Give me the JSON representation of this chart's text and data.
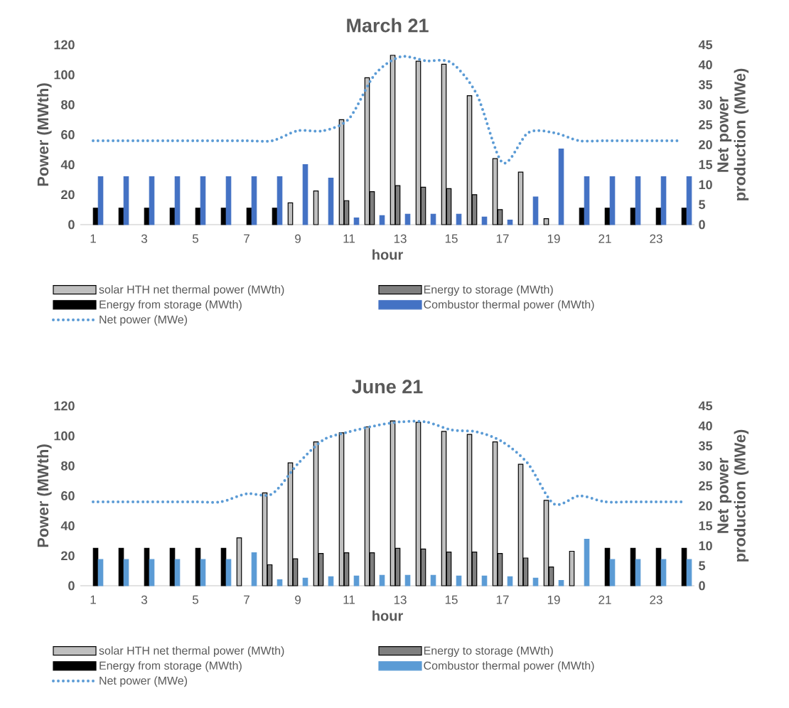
{
  "chart_data": [
    {
      "type": "bar",
      "title": "March 21",
      "xlabel": "hour",
      "ylabel": "Power (MWth)",
      "y2label": "Net power production (MWe)",
      "categories": [
        "1",
        null,
        "3",
        null,
        "5",
        null,
        "7",
        null,
        "9",
        null,
        "11",
        null,
        "13",
        null,
        "15",
        null,
        "17",
        null,
        "19",
        null,
        "21",
        null,
        "23",
        null
      ],
      "series": [
        {
          "name": "solar HTH net thermal power (MWth)",
          "color": "#bfbfbf",
          "values": [
            null,
            null,
            null,
            null,
            null,
            null,
            null,
            null,
            14.5,
            22.5,
            70,
            98,
            113,
            109,
            107,
            86,
            44,
            35,
            4,
            null,
            null,
            null,
            null,
            null
          ]
        },
        {
          "name": "Energy to storage (MWth)",
          "color": "#7f7f7f",
          "values": [
            null,
            null,
            null,
            null,
            null,
            null,
            null,
            null,
            null,
            null,
            16,
            22,
            26,
            25,
            24,
            20,
            10,
            null,
            null,
            null,
            null,
            null,
            null,
            null
          ]
        },
        {
          "name": "Energy from storage (MWth)",
          "color": "#000000",
          "values": [
            11,
            11,
            11,
            11,
            11,
            11,
            11,
            11,
            null,
            null,
            null,
            null,
            null,
            null,
            null,
            null,
            null,
            null,
            null,
            11,
            11,
            11,
            11,
            11
          ]
        },
        {
          "name": "Combustor thermal power (MWth)",
          "color": "#4472c4",
          "values": [
            32,
            32,
            32,
            32,
            32,
            32,
            32,
            32,
            40,
            31,
            4.5,
            6,
            7,
            7,
            7,
            5,
            3,
            18.5,
            50.5,
            32,
            32,
            32,
            32,
            32
          ]
        },
        {
          "name": "Net power (MWe)",
          "type": "line",
          "axis": "y2",
          "line_style": "dotted",
          "color": "#5b9bd5",
          "values": [
            21,
            21,
            21,
            21,
            21,
            21,
            21,
            21,
            23.5,
            23.5,
            26.5,
            37.5,
            42,
            41,
            40.5,
            32.5,
            15.5,
            23,
            23,
            21,
            21,
            21,
            21,
            21
          ]
        }
      ],
      "ylim": [
        0,
        120
      ],
      "yticks": [
        0,
        20,
        40,
        60,
        80,
        100,
        120
      ],
      "y2lim": [
        0,
        45
      ],
      "y2ticks": [
        0,
        5,
        10,
        15,
        20,
        25,
        30,
        35,
        40,
        45
      ],
      "legend": "bottom"
    },
    {
      "type": "bar",
      "title": "June 21",
      "xlabel": "hour",
      "ylabel": "Power (MWth)",
      "y2label": "Net power production (MWe)",
      "categories": [
        "1",
        null,
        "3",
        null,
        "5",
        null,
        "7",
        null,
        "9",
        null,
        "11",
        null,
        "13",
        null,
        "15",
        null,
        "17",
        null,
        "19",
        null,
        "21",
        null,
        "23",
        null
      ],
      "series": [
        {
          "name": "solar HTH net thermal power (MWth)",
          "color": "#bfbfbf",
          "values": [
            null,
            null,
            null,
            null,
            null,
            null,
            32,
            62,
            82,
            96,
            102,
            106,
            110,
            109,
            103,
            101,
            96,
            81,
            57,
            23,
            null,
            null,
            null,
            null
          ]
        },
        {
          "name": "Energy to storage (MWth)",
          "color": "#7f7f7f",
          "values": [
            null,
            null,
            null,
            null,
            null,
            null,
            null,
            14,
            18,
            21.5,
            22,
            22,
            25,
            24.5,
            22.5,
            22.5,
            21.5,
            18.5,
            12.5,
            null,
            null,
            null,
            null,
            null
          ]
        },
        {
          "name": "Energy from storage (MWth)",
          "color": "#000000",
          "values": [
            25,
            25,
            25,
            25,
            25,
            25,
            null,
            null,
            null,
            null,
            null,
            null,
            null,
            null,
            null,
            null,
            null,
            null,
            null,
            null,
            25,
            25,
            25,
            25
          ]
        },
        {
          "name": "Combustor thermal power (MWth)",
          "color": "#5b9bd5",
          "values": [
            17.5,
            17.5,
            17.5,
            17.5,
            17.5,
            17.5,
            22,
            4,
            5,
            6,
            6.5,
            7,
            7,
            7,
            6.5,
            6.5,
            6,
            5,
            3.5,
            31,
            17.5,
            17.5,
            17.5,
            17.5
          ]
        },
        {
          "name": "Net power (MWe)",
          "type": "line",
          "axis": "y2",
          "line_style": "dotted",
          "color": "#5b9bd5",
          "values": [
            21,
            21,
            21,
            21,
            21,
            21,
            23,
            23,
            30.5,
            36.5,
            38.5,
            40,
            41,
            41,
            39,
            38.5,
            36,
            30.5,
            20.5,
            22.5,
            21,
            21,
            21,
            21
          ]
        }
      ],
      "ylim": [
        0,
        120
      ],
      "yticks": [
        0,
        20,
        40,
        60,
        80,
        100,
        120
      ],
      "y2lim": [
        0,
        45
      ],
      "y2ticks": [
        0,
        5,
        10,
        15,
        20,
        25,
        30,
        35,
        40,
        45
      ],
      "legend": "bottom"
    }
  ]
}
